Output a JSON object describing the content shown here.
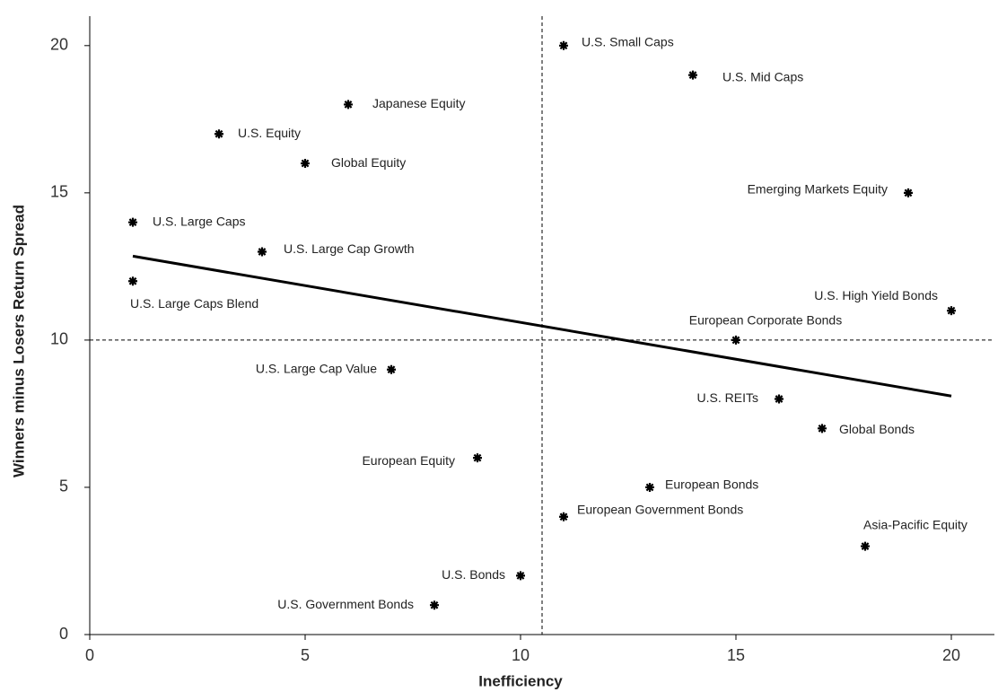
{
  "chart_data": {
    "type": "scatter",
    "x_label": "Inefficiency",
    "y_label": "Winners minus Losers Return Spread",
    "xlim": [
      0,
      21
    ],
    "ylim": [
      0,
      21
    ],
    "xticks": [
      0,
      5,
      10,
      15,
      20
    ],
    "yticks": [
      0,
      5,
      10,
      15,
      20
    ],
    "color": "#000000",
    "points": [
      {
        "label": "U.S. Small Caps",
        "x": 11,
        "y": 20
      },
      {
        "label": "U.S. Mid Caps",
        "x": 14,
        "y": 19
      },
      {
        "label": "Japanese Equity",
        "x": 6,
        "y": 18
      },
      {
        "label": "U.S. Equity",
        "x": 3,
        "y": 17
      },
      {
        "label": "Global Equity",
        "x": 5,
        "y": 16
      },
      {
        "label": "Emerging Markets Equity",
        "x": 19,
        "y": 15
      },
      {
        "label": "U.S. Large Caps",
        "x": 1,
        "y": 14
      },
      {
        "label": "U.S. Large Cap Growth",
        "x": 4,
        "y": 13
      },
      {
        "label": "U.S. Large Caps Blend",
        "x": 1,
        "y": 12
      },
      {
        "label": "U.S. High Yield Bonds",
        "x": 20,
        "y": 11
      },
      {
        "label": "European Corporate Bonds",
        "x": 15,
        "y": 10
      },
      {
        "label": "U.S. Large Cap Value",
        "x": 7,
        "y": 9
      },
      {
        "label": "U.S. REITs",
        "x": 16,
        "y": 8
      },
      {
        "label": "Global Bonds",
        "x": 17,
        "y": 7
      },
      {
        "label": "European Equity",
        "x": 9,
        "y": 6
      },
      {
        "label": "European Bonds",
        "x": 13,
        "y": 5
      },
      {
        "label": "European Government Bonds",
        "x": 11,
        "y": 4
      },
      {
        "label": "Asia-Pacific Equity",
        "x": 18,
        "y": 3
      },
      {
        "label": "U.S. Bonds",
        "x": 10,
        "y": 2
      },
      {
        "label": "U.S. Government Bonds",
        "x": 8,
        "y": 1
      }
    ],
    "trend_line": {
      "x": [
        1,
        20
      ],
      "y": [
        12.85,
        8.1
      ]
    },
    "vline": 10.5,
    "hline": 10
  }
}
